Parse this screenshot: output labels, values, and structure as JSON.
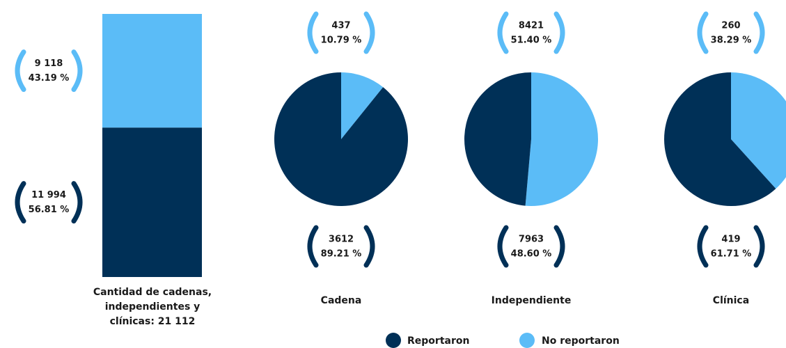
{
  "chart_data": [
    {
      "type": "bar",
      "stacked": true,
      "categories": [
        "Cantidad de cadenas, independientes y clínicas: 21 112"
      ],
      "series": [
        {
          "name": "Reportaron",
          "color": "#003057",
          "values": [
            11994
          ],
          "value_labels": [
            "11 994"
          ],
          "shares": [
            56.81
          ],
          "share_labels": [
            "56.81 %"
          ]
        },
        {
          "name": "No reportaron",
          "color": "#5bbcf7",
          "values": [
            9118
          ],
          "value_labels": [
            "9 118"
          ],
          "shares": [
            43.19
          ],
          "share_labels": [
            "43.19 %"
          ]
        }
      ],
      "legend": "bottom"
    },
    {
      "type": "pie",
      "title": "Cadena",
      "categories": [
        "Reportaron",
        "No reportaron"
      ],
      "values": [
        3612,
        437
      ],
      "shares": [
        89.21,
        10.79
      ],
      "share_labels": [
        "89.21 %",
        "10.79 %"
      ],
      "colors": [
        "#003057",
        "#5bbcf7"
      ]
    },
    {
      "type": "pie",
      "title": "Independiente",
      "categories": [
        "Reportaron",
        "No reportaron"
      ],
      "values": [
        7963,
        8421
      ],
      "shares": [
        48.6,
        51.4
      ],
      "share_labels": [
        "48.60 %",
        "51.40 %"
      ],
      "colors": [
        "#003057",
        "#5bbcf7"
      ]
    },
    {
      "type": "pie",
      "title": "Clínica",
      "categories": [
        "Reportaron",
        "No reportaron"
      ],
      "values": [
        419,
        260
      ],
      "shares": [
        61.71,
        38.29
      ],
      "share_labels": [
        "61.71 %",
        "38.29 %"
      ],
      "colors": [
        "#003057",
        "#5bbcf7"
      ]
    }
  ]
}
